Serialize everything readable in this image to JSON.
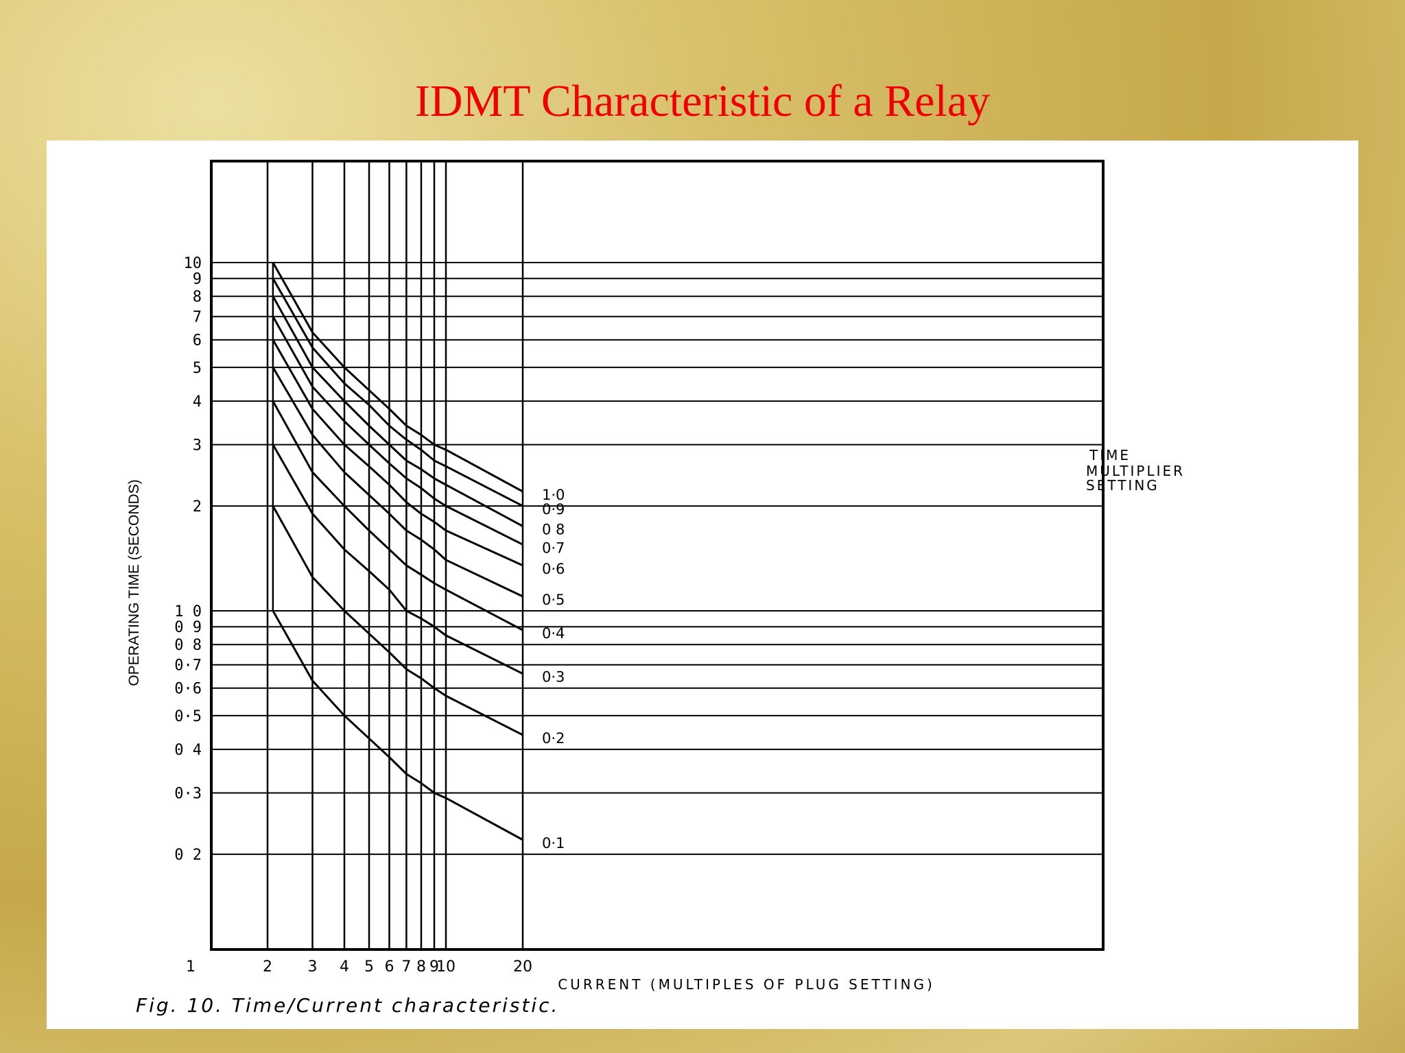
{
  "slide": {
    "title": "IDMT Characteristic of a Relay",
    "caption": "Fig. 10. Time/Current characteristic."
  },
  "chart_data": {
    "type": "line",
    "title": "",
    "xlabel": "CURRENT (MULTIPLES OF PLUG SETTING)",
    "ylabel": "OPERATING TIME (SECONDS)",
    "x_scale": "log",
    "y_scale": "log",
    "xlim": [
      1,
      30
    ],
    "ylim": [
      0.1,
      20
    ],
    "x_ticks": [
      1,
      2,
      3,
      4,
      5,
      6,
      7,
      8,
      9,
      10,
      20
    ],
    "x_tick_labels": [
      "1",
      "2",
      "3",
      "4",
      "5",
      "6",
      "7",
      "8",
      "9",
      "10",
      "20"
    ],
    "y_ticks": [
      0.2,
      0.3,
      0.4,
      0.5,
      0.6,
      0.7,
      0.8,
      0.9,
      1.0,
      2,
      3,
      4,
      5,
      6,
      7,
      8,
      9,
      10
    ],
    "y_tick_labels": [
      "0 2",
      "0·3",
      "0 4",
      "0·5",
      "0·6",
      "0·7",
      "0 8",
      "0 9",
      "1 0",
      "2",
      "3",
      "4",
      "5",
      "6",
      "7",
      "8",
      "9",
      "10"
    ],
    "grid": true,
    "legend_title": "TIME MULTIPLIER SETTING",
    "x": [
      2.1,
      3,
      4,
      5,
      6,
      7,
      8,
      9,
      10,
      20
    ],
    "series": [
      {
        "name": "1·0",
        "values": [
          10.0,
          6.3,
          5.0,
          4.3,
          3.8,
          3.4,
          3.2,
          3.0,
          2.9,
          2.2
        ]
      },
      {
        "name": "0·9",
        "values": [
          9.0,
          5.7,
          4.5,
          3.9,
          3.4,
          3.1,
          2.9,
          2.7,
          2.6,
          2.0
        ]
      },
      {
        "name": "0 8",
        "values": [
          8.0,
          5.0,
          4.0,
          3.4,
          3.0,
          2.7,
          2.55,
          2.4,
          2.3,
          1.75
        ]
      },
      {
        "name": "0·7",
        "values": [
          7.0,
          4.4,
          3.5,
          3.0,
          2.65,
          2.4,
          2.25,
          2.1,
          2.0,
          1.55
        ]
      },
      {
        "name": "0·6",
        "values": [
          6.0,
          3.8,
          3.0,
          2.6,
          2.3,
          2.05,
          1.9,
          1.8,
          1.7,
          1.35
        ]
      },
      {
        "name": "0·5",
        "values": [
          5.0,
          3.2,
          2.5,
          2.15,
          1.9,
          1.7,
          1.6,
          1.5,
          1.4,
          1.1
        ]
      },
      {
        "name": "0·4",
        "values": [
          4.0,
          2.5,
          2.0,
          1.7,
          1.5,
          1.35,
          1.27,
          1.2,
          1.15,
          0.88
        ]
      },
      {
        "name": "0·3",
        "values": [
          3.0,
          1.9,
          1.5,
          1.3,
          1.15,
          1.0,
          0.95,
          0.9,
          0.85,
          0.66
        ]
      },
      {
        "name": "0·2",
        "values": [
          2.0,
          1.25,
          1.0,
          0.86,
          0.76,
          0.68,
          0.64,
          0.6,
          0.57,
          0.44
        ]
      },
      {
        "name": "0·1",
        "values": [
          1.0,
          0.63,
          0.5,
          0.43,
          0.38,
          0.34,
          0.32,
          0.3,
          0.29,
          0.22
        ]
      }
    ],
    "colors": {
      "ink": "#000000",
      "background": "#ffffff"
    }
  }
}
